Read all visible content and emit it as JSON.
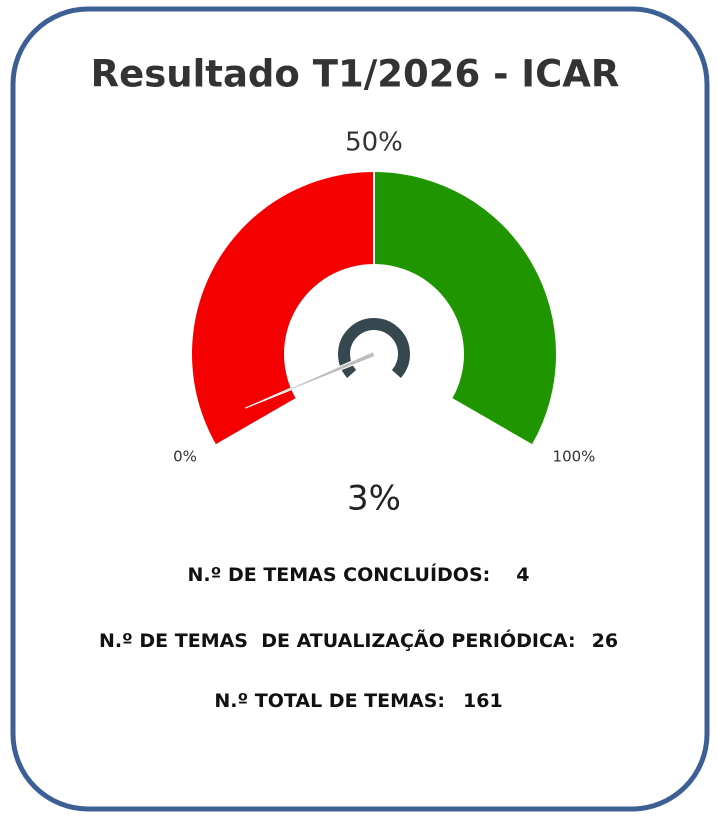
{
  "chart_data": {
    "type": "gauge",
    "title": "Resultado T1/2026 - ICAR",
    "value": 3,
    "value_label": "3%",
    "ylim": [
      0,
      100
    ],
    "yticks": [
      {
        "value": 0,
        "label": "0%"
      },
      {
        "value": 50,
        "label": "50%"
      },
      {
        "value": 100,
        "label": "100%"
      }
    ],
    "bands": [
      {
        "from": 0,
        "to": 50,
        "color": "#f40000"
      },
      {
        "from": 50,
        "to": 100,
        "color": "#1f9600"
      }
    ],
    "needle_color": "#bdbdbd"
  },
  "stats": [
    {
      "label": "N.º DE TEMAS CONCLUÍDOS:",
      "value": 4
    },
    {
      "label": "N.º DE TEMAS  DE ATUALIZAÇÃO PERIÓDICA:",
      "value": 26
    },
    {
      "label": "N.º TOTAL DE TEMAS:",
      "value": 161
    }
  ]
}
